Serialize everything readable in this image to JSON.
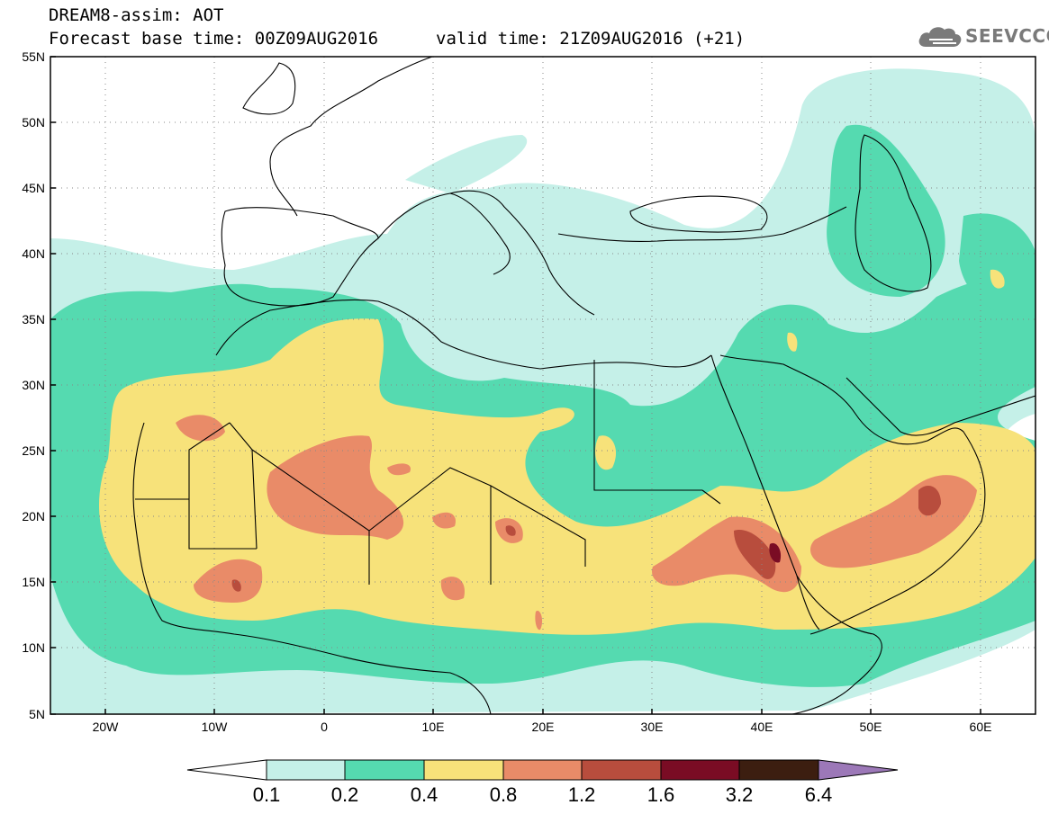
{
  "title": {
    "line1": "DREAM8-assim: AOT",
    "line2": "Forecast base time: 00Z09AUG2016",
    "valid": "valid time: 21Z09AUG2016 (+21)"
  },
  "logo": {
    "text": "SEEVCCC",
    "icon": "cloud-icon"
  },
  "axes": {
    "lat_labels": [
      "55N",
      "50N",
      "45N",
      "40N",
      "35N",
      "30N",
      "25N",
      "20N",
      "15N",
      "10N",
      "5N"
    ],
    "lon_labels": [
      "20W",
      "10W",
      "0",
      "10E",
      "20E",
      "30E",
      "40E",
      "50E",
      "60E"
    ]
  },
  "colorbar": {
    "labels": [
      "0.1",
      "0.2",
      "0.4",
      "0.8",
      "1.2",
      "1.6",
      "3.2",
      "6.4"
    ],
    "colors": [
      "#ffffff",
      "#c5f0e8",
      "#55dab0",
      "#f7e27a",
      "#e98b68",
      "#b84d3d",
      "#7a0c24",
      "#3c1e10",
      "#9c78b8"
    ]
  },
  "map": {
    "variable": "AOT",
    "extent": {
      "lon": [
        -25,
        65
      ],
      "lat": [
        5,
        55
      ]
    },
    "grid": "dotted",
    "coastlines": "black"
  }
}
